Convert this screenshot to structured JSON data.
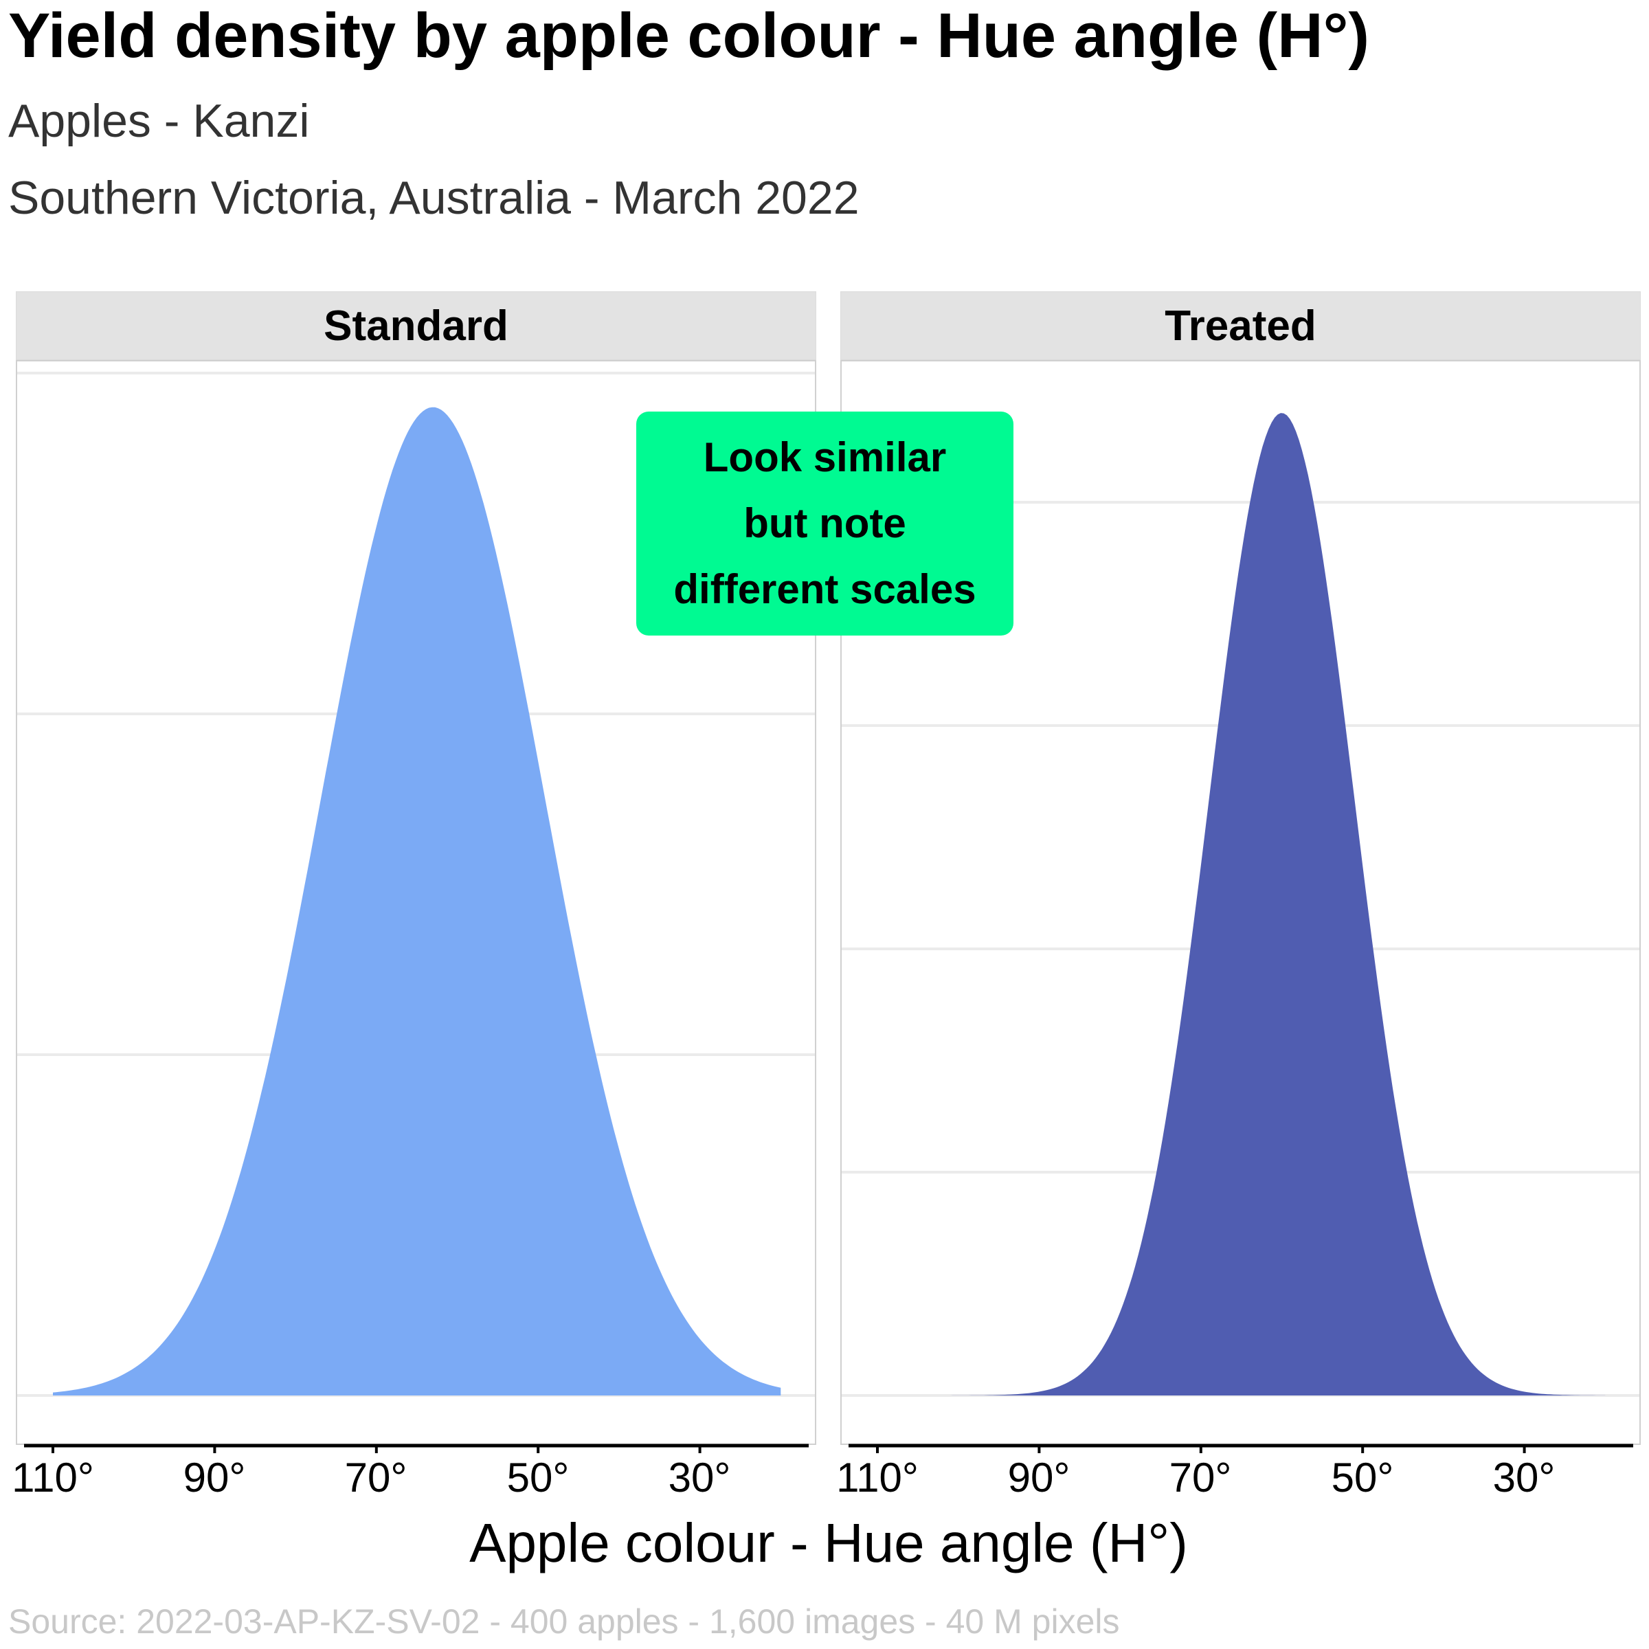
{
  "header": {
    "title": "Yield density by apple colour - Hue angle (H°)",
    "subtitle_line1": "Apples - Kanzi",
    "subtitle_line2": "Southern Victoria, Australia - March 2022"
  },
  "annotation": {
    "lines": [
      "Look similar",
      "but note",
      "different scales"
    ],
    "color": "#00FA92"
  },
  "footer": {
    "xlabel": "Apple colour - Hue angle (H°)",
    "source": "Source: 2022-03-AP-KZ-SV-02 - 400 apples - 1,600 images - 40 M pixels"
  },
  "chart_data": {
    "type": "area",
    "title": "Yield density by apple colour - Hue angle (H°)",
    "subtitle": "Apples - Kanzi / Southern Victoria, Australia - March 2022",
    "xlabel": "Apple colour - Hue angle (H°)",
    "ylabel": "",
    "x_reversed": true,
    "xlim": [
      112,
      16
    ],
    "x_ticks": [
      110,
      90,
      70,
      50,
      30
    ],
    "x_tick_labels": [
      "110°",
      "90°",
      "70°",
      "50°",
      "30°"
    ],
    "y_tick_labels_shown": false,
    "grid": "horizontal major only",
    "legend": "none",
    "facets": [
      {
        "name": "Standard",
        "color": "#7BAAF5",
        "distribution": "approx. normal",
        "mean_hue": 63,
        "sd_hue": 13.8,
        "x_range": [
          110,
          20
        ],
        "peak_density": 0.029,
        "y_gridlines": [
          0,
          0.01,
          0.02,
          0.03
        ],
        "ylim": [
          -0.0015,
          0.0318
        ]
      },
      {
        "name": "Treated",
        "color": "#505DB1",
        "distribution": "approx. normal",
        "mean_hue": 60,
        "sd_hue": 9.0,
        "x_range": [
          110,
          20
        ],
        "peak_density": 0.044,
        "y_gridlines": [
          0,
          0.01,
          0.02,
          0.03,
          0.04
        ],
        "ylim": [
          -0.0022,
          0.0477
        ]
      }
    ],
    "annotations": [
      "Look similar but note different scales"
    ],
    "source": "Source: 2022-03-AP-KZ-SV-02 - 400 apples - 1,600 images - 40 M pixels"
  }
}
